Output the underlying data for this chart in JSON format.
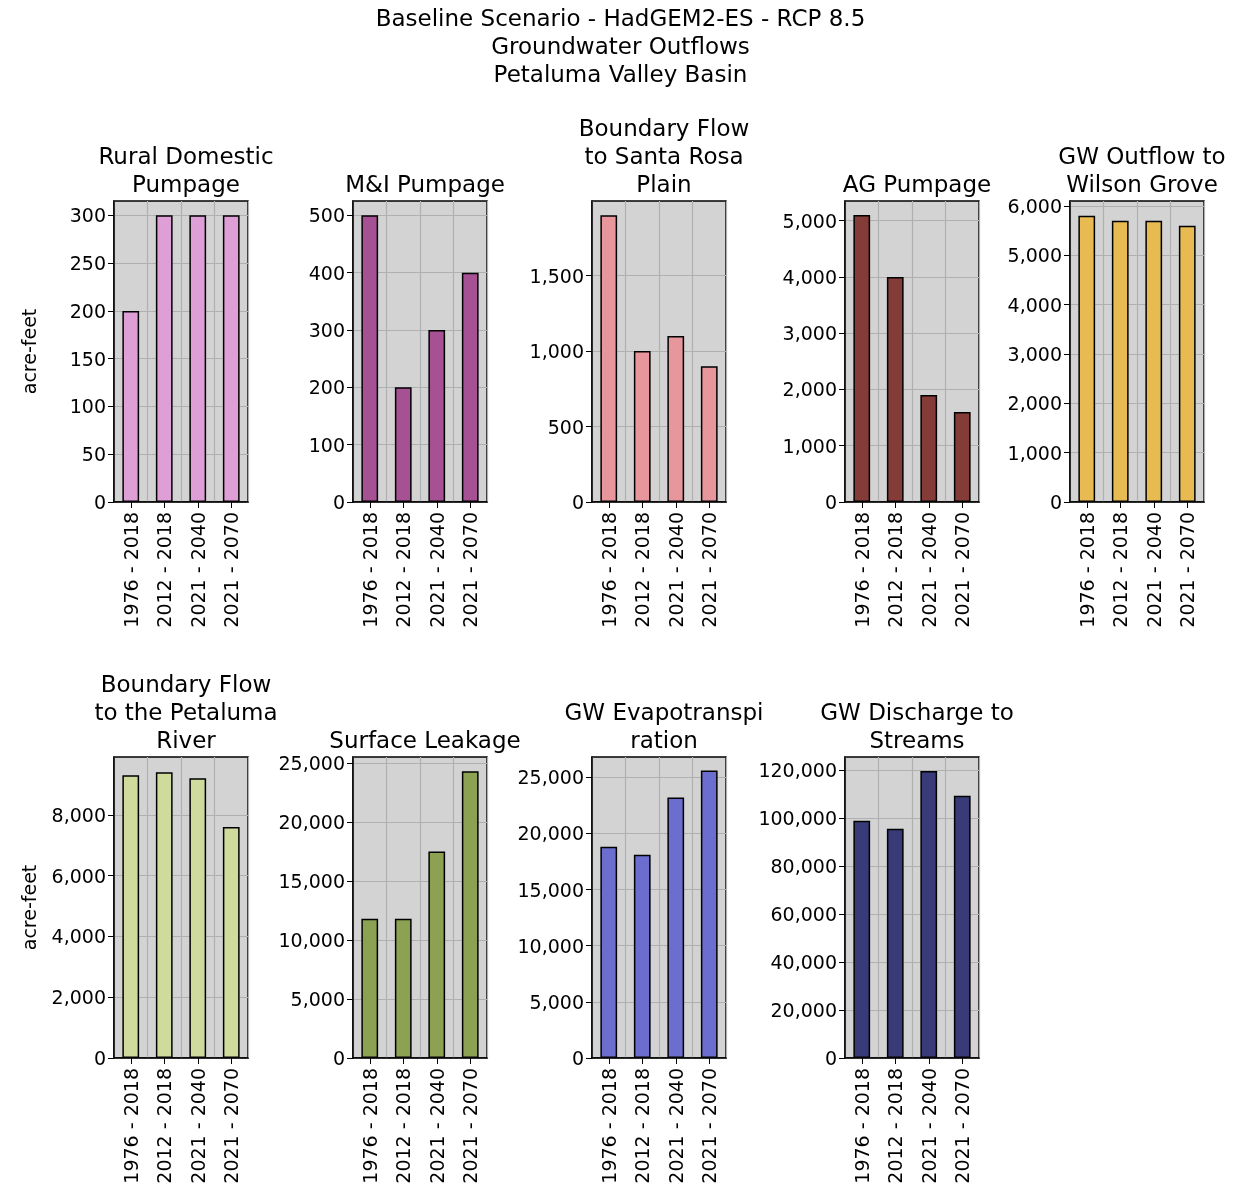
{
  "chart_data": [
    {
      "type": "other",
      "title": "Baseline Scenario - HadGEM2-ES - RCP 8.5\nGroundwater Outflows\nPetaluma Valley Basin"
    },
    {
      "type": "bar",
      "title": "Rural Domestic\nPumpage",
      "ylabel": "acre-feet",
      "categories": [
        "1976 - 2018",
        "2012 - 2018",
        "2021 - 2040",
        "2021 - 2070"
      ],
      "values": [
        200,
        300,
        300,
        300
      ],
      "color": "#de9ed6",
      "ylim": [
        0,
        315
      ],
      "yticks": [
        0,
        50,
        100,
        150,
        200,
        250,
        300
      ],
      "grid": true
    },
    {
      "type": "bar",
      "title": "M&I Pumpage",
      "categories": [
        "1976 - 2018",
        "2012 - 2018",
        "2021 - 2040",
        "2021 - 2070"
      ],
      "values": [
        500,
        200,
        300,
        400
      ],
      "color": "#a55194",
      "ylim": [
        0,
        525
      ],
      "yticks": [
        0,
        100,
        200,
        300,
        400,
        500
      ],
      "grid": true
    },
    {
      "type": "bar",
      "title": "Boundary Flow\nto Santa Rosa\nPlain",
      "categories": [
        "1976 - 2018",
        "2012 - 2018",
        "2021 - 2040",
        "2021 - 2070"
      ],
      "values": [
        1900,
        1000,
        1100,
        900
      ],
      "color": "#e7969c",
      "ylim": [
        0,
        1995
      ],
      "yticks": [
        0,
        500,
        {
          "value": 1000,
          "label": "1,000"
        },
        {
          "value": 1500,
          "label": "1,500"
        }
      ],
      "grid": true
    },
    {
      "type": "bar",
      "title": "AG Pumpage",
      "categories": [
        "1976 - 2018",
        "2012 - 2018",
        "2021 - 2040",
        "2021 - 2070"
      ],
      "values": [
        5100,
        4000,
        1900,
        1600
      ],
      "color": "#843c39",
      "ylim": [
        0,
        5350
      ],
      "yticks": [
        0,
        {
          "value": 1000,
          "label": "1,000"
        },
        {
          "value": 2000,
          "label": "2,000"
        },
        {
          "value": 3000,
          "label": "3,000"
        },
        {
          "value": 4000,
          "label": "4,000"
        },
        {
          "value": 5000,
          "label": "5,000"
        }
      ],
      "grid": true
    },
    {
      "type": "bar",
      "title": "GW Outflow to\nWilson Grove",
      "categories": [
        "1976 - 2018",
        "2012 - 2018",
        "2021 - 2040",
        "2021 - 2070"
      ],
      "values": [
        5800,
        5700,
        5700,
        5600
      ],
      "color": "#e7ba52",
      "ylim": [
        0,
        6100
      ],
      "yticks": [
        0,
        {
          "value": 1000,
          "label": "1,000"
        },
        {
          "value": 2000,
          "label": "2,000"
        },
        {
          "value": 3000,
          "label": "3,000"
        },
        {
          "value": 4000,
          "label": "4,000"
        },
        {
          "value": 5000,
          "label": "5,000"
        },
        {
          "value": 6000,
          "label": "6,000"
        }
      ],
      "grid": true
    },
    {
      "type": "bar",
      "title": "Boundary Flow\nto the Petaluma\nRiver",
      "ylabel": "acre-feet",
      "categories": [
        "1976 - 2018",
        "2012 - 2018",
        "2021 - 2040",
        "2021 - 2070"
      ],
      "values": [
        9300,
        9400,
        9200,
        7600
      ],
      "color": "#cedb9c",
      "ylim": [
        0,
        9900
      ],
      "yticks": [
        0,
        {
          "value": 2000,
          "label": "2,000"
        },
        {
          "value": 4000,
          "label": "4,000"
        },
        {
          "value": 6000,
          "label": "6,000"
        },
        {
          "value": 8000,
          "label": "8,000"
        }
      ],
      "grid": true
    },
    {
      "type": "bar",
      "title": "Surface Leakage",
      "categories": [
        "1976 - 2018",
        "2012 - 2018",
        "2021 - 2040",
        "2021 - 2070"
      ],
      "values": [
        11800,
        11800,
        17500,
        24300
      ],
      "color": "#8ca252",
      "ylim": [
        0,
        25500
      ],
      "yticks": [
        0,
        {
          "value": 5000,
          "label": "5,000"
        },
        {
          "value": 10000,
          "label": "10,000"
        },
        {
          "value": 15000,
          "label": "15,000"
        },
        {
          "value": 20000,
          "label": "20,000"
        },
        {
          "value": 25000,
          "label": "25,000"
        }
      ],
      "grid": true
    },
    {
      "type": "bar",
      "title": "GW Evapotranspi\nration",
      "categories": [
        "1976 - 2018",
        "2012 - 2018",
        "2021 - 2040",
        "2021 - 2070"
      ],
      "values": [
        18800,
        18100,
        23200,
        25600
      ],
      "color": "#6b6ecf",
      "ylim": [
        0,
        26800
      ],
      "yticks": [
        0,
        {
          "value": 5000,
          "label": "5,000"
        },
        {
          "value": 10000,
          "label": "10,000"
        },
        {
          "value": 15000,
          "label": "15,000"
        },
        {
          "value": 20000,
          "label": "20,000"
        },
        {
          "value": 25000,
          "label": "25,000"
        }
      ],
      "grid": true
    },
    {
      "type": "bar",
      "title": "GW Discharge to\nStreams",
      "categories": [
        "1976 - 2018",
        "2012 - 2018",
        "2021 - 2040",
        "2021 - 2070"
      ],
      "values": [
        98900,
        95600,
        119700,
        109300
      ],
      "color": "#393b79",
      "ylim": [
        0,
        125500
      ],
      "yticks": [
        0,
        {
          "value": 20000,
          "label": "20,000"
        },
        {
          "value": 40000,
          "label": "40,000"
        },
        {
          "value": 60000,
          "label": "60,000"
        },
        {
          "value": 80000,
          "label": "80,000"
        },
        {
          "value": 100000,
          "label": "100,000"
        },
        {
          "value": 120000,
          "label": "120,000"
        }
      ],
      "grid": true
    }
  ]
}
